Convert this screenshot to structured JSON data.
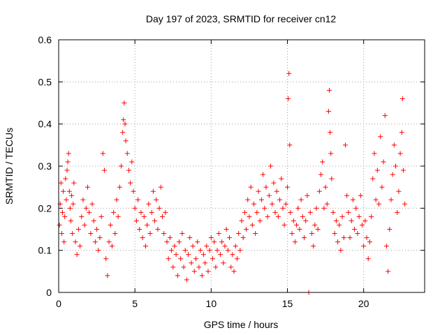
{
  "chart_data": {
    "type": "scatter",
    "title": "Day 197 of 2023, SRMTID for receiver cn12",
    "xlabel": "GPS time / hours",
    "ylabel": "SRMTID / TECUs",
    "xlim": [
      0,
      24
    ],
    "ylim": [
      0,
      0.6
    ],
    "xticks": [
      0,
      5,
      10,
      15,
      20
    ],
    "xtick_labels": [
      "0",
      "5",
      "10",
      "15",
      "20"
    ],
    "yticks": [
      0,
      0.1,
      0.2,
      0.3,
      0.4,
      0.5,
      0.6
    ],
    "ytick_labels": [
      "0",
      "0.1",
      "0.2",
      "0.3",
      "0.4",
      "0.5",
      "0.6"
    ],
    "grid": true,
    "marker": "+",
    "color": "#ff0000",
    "series": [
      {
        "name": "SRMTID",
        "points": [
          [
            0.05,
            0.16
          ],
          [
            0.1,
            0.21
          ],
          [
            0.15,
            0.26
          ],
          [
            0.2,
            0.14
          ],
          [
            0.25,
            0.19
          ],
          [
            0.3,
            0.24
          ],
          [
            0.35,
            0.12
          ],
          [
            0.4,
            0.18
          ],
          [
            0.45,
            0.27
          ],
          [
            0.5,
            0.22
          ],
          [
            0.55,
            0.29
          ],
          [
            0.6,
            0.31
          ],
          [
            0.65,
            0.33
          ],
          [
            0.7,
            0.24
          ],
          [
            0.75,
            0.2
          ],
          [
            0.8,
            0.17
          ],
          [
            0.85,
            0.23
          ],
          [
            0.9,
            0.14
          ],
          [
            0.95,
            0.21
          ],
          [
            1.0,
            0.26
          ],
          [
            1.1,
            0.12
          ],
          [
            1.2,
            0.09
          ],
          [
            1.3,
            0.15
          ],
          [
            1.4,
            0.11
          ],
          [
            1.5,
            0.18
          ],
          [
            1.6,
            0.22
          ],
          [
            1.7,
            0.16
          ],
          [
            1.8,
            0.2
          ],
          [
            1.9,
            0.25
          ],
          [
            2.0,
            0.19
          ],
          [
            2.1,
            0.14
          ],
          [
            2.2,
            0.21
          ],
          [
            2.3,
            0.17
          ],
          [
            2.4,
            0.12
          ],
          [
            2.5,
            0.15
          ],
          [
            2.6,
            0.1
          ],
          [
            2.7,
            0.13
          ],
          [
            2.8,
            0.18
          ],
          [
            2.9,
            0.33
          ],
          [
            3.0,
            0.29
          ],
          [
            3.1,
            0.08
          ],
          [
            3.2,
            0.04
          ],
          [
            3.3,
            0.12
          ],
          [
            3.4,
            0.16
          ],
          [
            3.5,
            0.11
          ],
          [
            3.6,
            0.19
          ],
          [
            3.7,
            0.14
          ],
          [
            3.8,
            0.22
          ],
          [
            3.9,
            0.18
          ],
          [
            4.0,
            0.25
          ],
          [
            4.1,
            0.3
          ],
          [
            4.2,
            0.38
          ],
          [
            4.25,
            0.41
          ],
          [
            4.3,
            0.45
          ],
          [
            4.35,
            0.4
          ],
          [
            4.4,
            0.36
          ],
          [
            4.5,
            0.33
          ],
          [
            4.6,
            0.29
          ],
          [
            4.7,
            0.26
          ],
          [
            4.8,
            0.31
          ],
          [
            4.9,
            0.24
          ],
          [
            5.0,
            0.2
          ],
          [
            5.1,
            0.17
          ],
          [
            5.2,
            0.22
          ],
          [
            5.3,
            0.15
          ],
          [
            5.4,
            0.19
          ],
          [
            5.5,
            0.13
          ],
          [
            5.6,
            0.18
          ],
          [
            5.7,
            0.11
          ],
          [
            5.8,
            0.16
          ],
          [
            5.9,
            0.21
          ],
          [
            6.0,
            0.14
          ],
          [
            6.1,
            0.19
          ],
          [
            6.2,
            0.24
          ],
          [
            6.3,
            0.17
          ],
          [
            6.4,
            0.22
          ],
          [
            6.5,
            0.15
          ],
          [
            6.6,
            0.2
          ],
          [
            6.7,
            0.25
          ],
          [
            6.8,
            0.18
          ],
          [
            6.9,
            0.14
          ],
          [
            7.0,
            0.19
          ],
          [
            7.1,
            0.12
          ],
          [
            7.2,
            0.08
          ],
          [
            7.3,
            0.13
          ],
          [
            7.4,
            0.1
          ],
          [
            7.5,
            0.06
          ],
          [
            7.6,
            0.11
          ],
          [
            7.7,
            0.09
          ],
          [
            7.8,
            0.04
          ],
          [
            7.9,
            0.12
          ],
          [
            8.0,
            0.08
          ],
          [
            8.1,
            0.14
          ],
          [
            8.2,
            0.06
          ],
          [
            8.3,
            0.1
          ],
          [
            8.4,
            0.03
          ],
          [
            8.5,
            0.09
          ],
          [
            8.6,
            0.13
          ],
          [
            8.7,
            0.07
          ],
          [
            8.8,
            0.11
          ],
          [
            8.9,
            0.05
          ],
          [
            9.0,
            0.08
          ],
          [
            9.1,
            0.12
          ],
          [
            9.2,
            0.06
          ],
          [
            9.3,
            0.1
          ],
          [
            9.4,
            0.04
          ],
          [
            9.5,
            0.09
          ],
          [
            9.6,
            0.07
          ],
          [
            9.7,
            0.11
          ],
          [
            9.8,
            0.05
          ],
          [
            9.9,
            0.1
          ],
          [
            10.0,
            0.13
          ],
          [
            10.1,
            0.08
          ],
          [
            10.2,
            0.12
          ],
          [
            10.3,
            0.06
          ],
          [
            10.4,
            0.1
          ],
          [
            10.5,
            0.14
          ],
          [
            10.6,
            0.09
          ],
          [
            10.7,
            0.12
          ],
          [
            10.8,
            0.07
          ],
          [
            10.9,
            0.11
          ],
          [
            11.0,
            0.15
          ],
          [
            11.1,
            0.1
          ],
          [
            11.2,
            0.13
          ],
          [
            11.3,
            0.06
          ],
          [
            11.4,
            0.09
          ],
          [
            11.5,
            0.05
          ],
          [
            11.6,
            0.11
          ],
          [
            11.7,
            0.08
          ],
          [
            11.8,
            0.14
          ],
          [
            11.9,
            0.1
          ],
          [
            12.0,
            0.17
          ],
          [
            12.1,
            0.13
          ],
          [
            12.2,
            0.19
          ],
          [
            12.3,
            0.15
          ],
          [
            12.4,
            0.22
          ],
          [
            12.5,
            0.18
          ],
          [
            12.6,
            0.25
          ],
          [
            12.7,
            0.16
          ],
          [
            12.8,
            0.21
          ],
          [
            12.9,
            0.14
          ],
          [
            13.0,
            0.19
          ],
          [
            13.1,
            0.24
          ],
          [
            13.2,
            0.17
          ],
          [
            13.3,
            0.22
          ],
          [
            13.4,
            0.28
          ],
          [
            13.5,
            0.2
          ],
          [
            13.6,
            0.25
          ],
          [
            13.7,
            0.18
          ],
          [
            13.8,
            0.23
          ],
          [
            13.9,
            0.3
          ],
          [
            14.0,
            0.21
          ],
          [
            14.1,
            0.26
          ],
          [
            14.2,
            0.19
          ],
          [
            14.3,
            0.24
          ],
          [
            14.4,
            0.18
          ],
          [
            14.5,
            0.22
          ],
          [
            14.6,
            0.27
          ],
          [
            14.7,
            0.2
          ],
          [
            14.8,
            0.16
          ],
          [
            14.9,
            0.21
          ],
          [
            15.0,
            0.25
          ],
          [
            15.05,
            0.46
          ],
          [
            15.1,
            0.52
          ],
          [
            15.15,
            0.35
          ],
          [
            15.2,
            0.19
          ],
          [
            15.3,
            0.14
          ],
          [
            15.4,
            0.17
          ],
          [
            15.5,
            0.12
          ],
          [
            15.6,
            0.16
          ],
          [
            15.7,
            0.2
          ],
          [
            15.8,
            0.15
          ],
          [
            15.9,
            0.22
          ],
          [
            16.0,
            0.18
          ],
          [
            16.1,
            0.13
          ],
          [
            16.2,
            0.17
          ],
          [
            16.3,
            0.23
          ],
          [
            16.4,
            0.0
          ],
          [
            16.5,
            0.19
          ],
          [
            16.6,
            0.14
          ],
          [
            16.7,
            0.11
          ],
          [
            16.8,
            0.16
          ],
          [
            16.9,
            0.2
          ],
          [
            17.0,
            0.15
          ],
          [
            17.1,
            0.24
          ],
          [
            17.2,
            0.28
          ],
          [
            17.3,
            0.31
          ],
          [
            17.4,
            0.2
          ],
          [
            17.5,
            0.25
          ],
          [
            17.6,
            0.21
          ],
          [
            17.7,
            0.43
          ],
          [
            17.75,
            0.48
          ],
          [
            17.8,
            0.38
          ],
          [
            17.85,
            0.33
          ],
          [
            17.9,
            0.27
          ],
          [
            18.0,
            0.19
          ],
          [
            18.1,
            0.14
          ],
          [
            18.2,
            0.17
          ],
          [
            18.3,
            0.12
          ],
          [
            18.4,
            0.16
          ],
          [
            18.5,
            0.1
          ],
          [
            18.6,
            0.18
          ],
          [
            18.7,
            0.13
          ],
          [
            18.8,
            0.35
          ],
          [
            18.9,
            0.23
          ],
          [
            19.0,
            0.19
          ],
          [
            19.1,
            0.13
          ],
          [
            19.2,
            0.17
          ],
          [
            19.3,
            0.22
          ],
          [
            19.4,
            0.15
          ],
          [
            19.5,
            0.2
          ],
          [
            19.6,
            0.14
          ],
          [
            19.7,
            0.18
          ],
          [
            19.8,
            0.23
          ],
          [
            19.9,
            0.16
          ],
          [
            20.0,
            0.11
          ],
          [
            20.1,
            0.17
          ],
          [
            20.2,
            0.13
          ],
          [
            20.3,
            0.08
          ],
          [
            20.4,
            0.12
          ],
          [
            20.5,
            0.18
          ],
          [
            20.6,
            0.27
          ],
          [
            20.7,
            0.33
          ],
          [
            20.8,
            0.22
          ],
          [
            20.9,
            0.29
          ],
          [
            21.0,
            0.21
          ],
          [
            21.1,
            0.37
          ],
          [
            21.2,
            0.25
          ],
          [
            21.3,
            0.31
          ],
          [
            21.4,
            0.42
          ],
          [
            21.5,
            0.11
          ],
          [
            21.6,
            0.05
          ],
          [
            21.7,
            0.15
          ],
          [
            21.8,
            0.22
          ],
          [
            21.9,
            0.28
          ],
          [
            22.0,
            0.35
          ],
          [
            22.1,
            0.3
          ],
          [
            22.2,
            0.19
          ],
          [
            22.3,
            0.24
          ],
          [
            22.4,
            0.33
          ],
          [
            22.5,
            0.38
          ],
          [
            22.55,
            0.46
          ],
          [
            22.6,
            0.29
          ],
          [
            22.7,
            0.21
          ]
        ]
      }
    ]
  }
}
